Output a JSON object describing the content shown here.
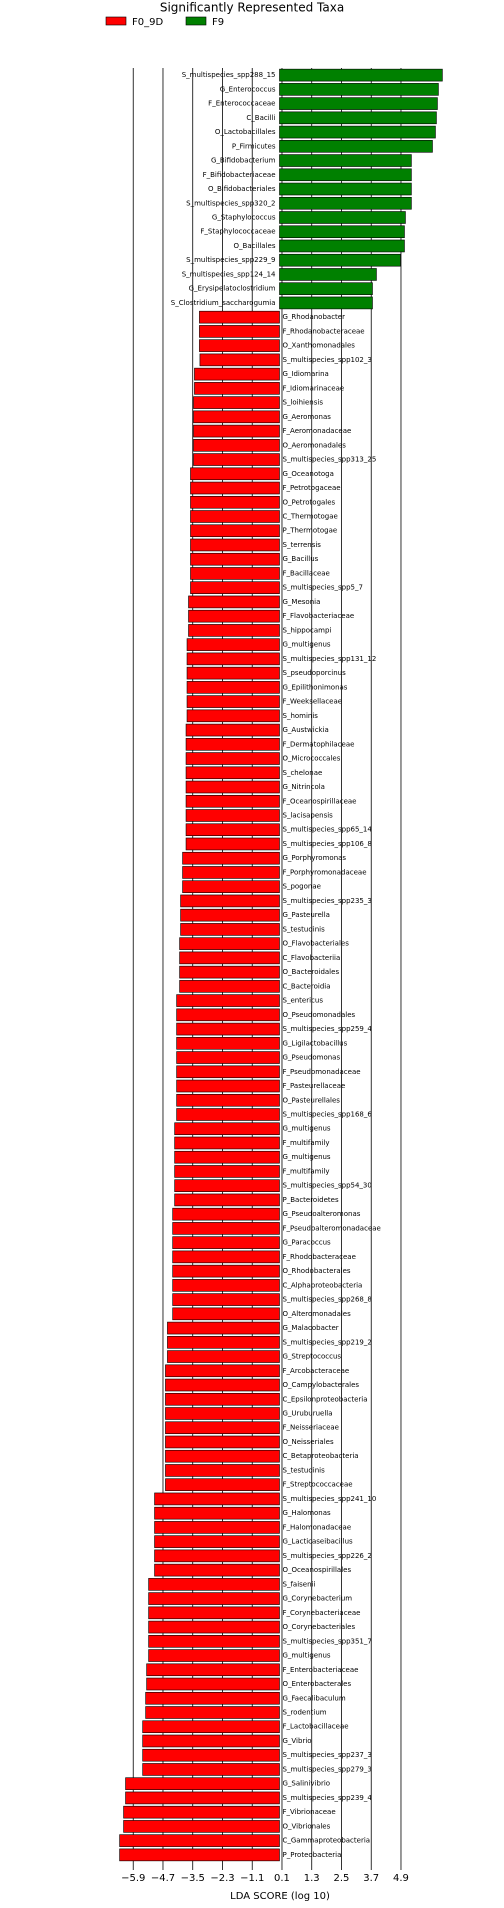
{
  "chart_data": {
    "type": "barh",
    "title": "Significantly Represented Taxa",
    "xlabel": "LDA SCORE (log 10)",
    "categories": [
      "S_multispecies_spp288_15",
      "G_Enterococcus",
      "F_Enterococcaceae",
      "C_Bacilli",
      "O_Lactobacillales",
      "P_Firmicutes",
      "G_Bifidobacterium",
      "F_Bifidobacteriaceae",
      "O_Bifidobacteriales",
      "S_multispecies_spp320_2",
      "G_Staphylococcus",
      "F_Staphylococcaceae",
      "O_Bacillales",
      "S_multispecies_spp229_9",
      "S_multispecies_spp124_14",
      "G_Erysipelatoclostridium",
      "S_Clostridium_saccharogumia",
      "G_Rhodanobacter",
      "F_Rhodanobacteraceae",
      "O_Xanthomonadales",
      "S_multispecies_spp102_3",
      "G_Idiomarina",
      "F_Idiomarinaceae",
      "S_loihiensis",
      "G_Aeromonas",
      "F_Aeromonadaceae",
      "O_Aeromonadales",
      "S_multispecies_spp313_25",
      "G_Oceanotoga",
      "F_Petrotogaceae",
      "O_Petrotogales",
      "C_Thermotogae",
      "P_Thermotogae",
      "S_terrensis",
      "G_Bacillus",
      "F_Bacillaceae",
      "S_multispecies_spp5_7",
      "G_Mesonia",
      "F_Flavobacteriaceae",
      "S_hippocampi",
      "G_multigenus",
      "S_multispecies_spp131_12",
      "S_pseudoporcinus",
      "G_Epilithonimonas",
      "F_Weeksellaceae",
      "S_hominis",
      "G_Austwickia",
      "F_Dermatophilaceae",
      "O_Micrococcales",
      "S_chelonae",
      "G_Nitrincola",
      "F_Oceanospirillaceae",
      "S_lacisapensis",
      "S_multispecies_spp65_14",
      "S_multispecies_spp106_8",
      "G_Porphyromonas",
      "F_Porphyromonadaceae",
      "S_pogonae",
      "S_multispecies_spp235_3",
      "G_Pasteurella",
      "S_testudinis",
      "O_Flavobacteriales",
      "C_Flavobacteriia",
      "O_Bacteroidales",
      "C_Bacteroidia",
      "S_entericus",
      "O_Pseudomonadales",
      "S_multispecies_spp259_4",
      "G_Ligilactobacillus",
      "G_Pseudomonas",
      "F_Pseudomonadaceae",
      "F_Pasteurellaceae",
      "O_Pasteurellales",
      "S_multispecies_spp168_6",
      "G_multigenus",
      "F_multifamily",
      "G_multigenus",
      "F_multifamily",
      "S_multispecies_spp54_30",
      "P_Bacteroidetes",
      "G_Pseudoalteromonas",
      "F_Pseudoalteromonadaceae",
      "G_Paracoccus",
      "F_Rhodobacteraceae",
      "O_Rhodobacterales",
      "C_Alphaproteobacteria",
      "S_multispecies_spp268_8",
      "O_Alteromonadales",
      "G_Malacobacter",
      "S_multispecies_spp219_2",
      "G_Streptococcus",
      "F_Arcobacteraceae",
      "O_Campylobacterales",
      "C_Epsilonproteobacteria",
      "G_Uruburuella",
      "F_Neisseriaceae",
      "O_Neisseriales",
      "C_Betaproteobacteria",
      "S_testudinis",
      "F_Streptococcaceae",
      "S_multispecies_spp241_10",
      "G_Halomonas",
      "F_Halomonadaceae",
      "G_Lacticaseibacillus",
      "S_multispecies_spp226_2",
      "O_Oceanospirillales",
      "S_faisenii",
      "G_Corynebacterium",
      "F_Corynebacteriaceae",
      "O_Corynebacteriales",
      "S_multispecies_spp351_7",
      "G_multigenus",
      "F_Enterobacteriaceae",
      "O_Enterobacterales",
      "G_Faecalibaculum",
      "S_rodentium",
      "F_Lactobacillaceae",
      "G_Vibrio",
      "S_multispecies_spp237_3",
      "S_multispecies_spp279_3",
      "G_Salinivibrio",
      "S_multispecies_spp239_4",
      "F_Vibrionaceae",
      "O_Vibrionales",
      "C_Gammaproteobacteria",
      "P_Proteobacteria"
    ],
    "series": [
      {
        "name": "F0_9D",
        "color": "#ff0000",
        "values": [
          null,
          null,
          null,
          null,
          null,
          null,
          null,
          null,
          null,
          null,
          null,
          null,
          null,
          null,
          null,
          null,
          null,
          -3.23,
          -3.23,
          -3.23,
          -3.21,
          -3.43,
          -3.43,
          -3.47,
          -3.47,
          -3.47,
          -3.47,
          -3.47,
          -3.59,
          -3.59,
          -3.59,
          -3.59,
          -3.59,
          -3.59,
          -3.59,
          -3.59,
          -3.59,
          -3.67,
          -3.67,
          -3.67,
          -3.73,
          -3.73,
          -3.73,
          -3.73,
          -3.73,
          -3.73,
          -3.77,
          -3.77,
          -3.77,
          -3.77,
          -3.77,
          -3.77,
          -3.77,
          -3.77,
          -3.77,
          -3.91,
          -3.91,
          -3.91,
          -3.99,
          -3.99,
          -3.99,
          -4.03,
          -4.03,
          -4.03,
          -4.03,
          -4.15,
          -4.15,
          -4.15,
          -4.15,
          -4.15,
          -4.15,
          -4.15,
          -4.15,
          -4.15,
          -4.23,
          -4.23,
          -4.23,
          -4.23,
          -4.23,
          -4.23,
          -4.31,
          -4.31,
          -4.31,
          -4.31,
          -4.31,
          -4.31,
          -4.31,
          -4.31,
          -4.52,
          -4.52,
          -4.52,
          -4.6,
          -4.6,
          -4.6,
          -4.6,
          -4.6,
          -4.6,
          -4.6,
          -4.6,
          -4.6,
          -5.04,
          -5.04,
          -5.04,
          -5.04,
          -5.04,
          -5.04,
          -5.28,
          -5.28,
          -5.28,
          -5.28,
          -5.28,
          -5.28,
          -5.36,
          -5.36,
          -5.4,
          -5.4,
          -5.52,
          -5.52,
          -5.52,
          -5.52,
          -6.21,
          -6.21,
          -6.29,
          -6.29,
          -6.45,
          -6.45
        ]
      },
      {
        "name": "F9",
        "color": "#008000",
        "values": [
          6.57,
          6.41,
          6.37,
          6.33,
          6.29,
          6.17,
          5.32,
          5.32,
          5.32,
          5.32,
          5.08,
          5.04,
          5.04,
          4.88,
          3.91,
          3.75,
          3.75,
          null,
          null,
          null,
          null,
          null,
          null,
          null,
          null,
          null,
          null,
          null,
          null,
          null,
          null,
          null,
          null,
          null,
          null,
          null,
          null,
          null,
          null,
          null,
          null,
          null,
          null,
          null,
          null,
          null,
          null,
          null,
          null,
          null,
          null,
          null,
          null,
          null,
          null,
          null,
          null,
          null,
          null,
          null,
          null,
          null,
          null,
          null,
          null,
          null,
          null,
          null,
          null,
          null,
          null,
          null,
          null,
          null,
          null,
          null,
          null,
          null,
          null,
          null,
          null,
          null,
          null,
          null,
          null,
          null,
          null,
          null,
          null,
          null,
          null,
          null,
          null,
          null,
          null,
          null,
          null,
          null,
          null,
          null,
          null,
          null,
          null,
          null,
          null,
          null,
          null,
          null,
          null,
          null,
          null,
          null,
          null,
          null,
          null,
          null,
          null,
          null,
          null,
          null,
          null,
          null,
          null,
          null,
          null,
          null
        ]
      }
    ],
    "xlim": [
      -7.2,
      7.2
    ],
    "xticks": [
      {
        "value": -5.9,
        "label": "−5.9"
      },
      {
        "value": -4.7,
        "label": "−4.7"
      },
      {
        "value": -3.5,
        "label": "−3.5"
      },
      {
        "value": -2.3,
        "label": "−2.3"
      },
      {
        "value": -1.1,
        "label": "−1.1"
      },
      0.1,
      1.3,
      2.5,
      3.7,
      4.9
    ],
    "grid": true,
    "legend": "upper left"
  }
}
